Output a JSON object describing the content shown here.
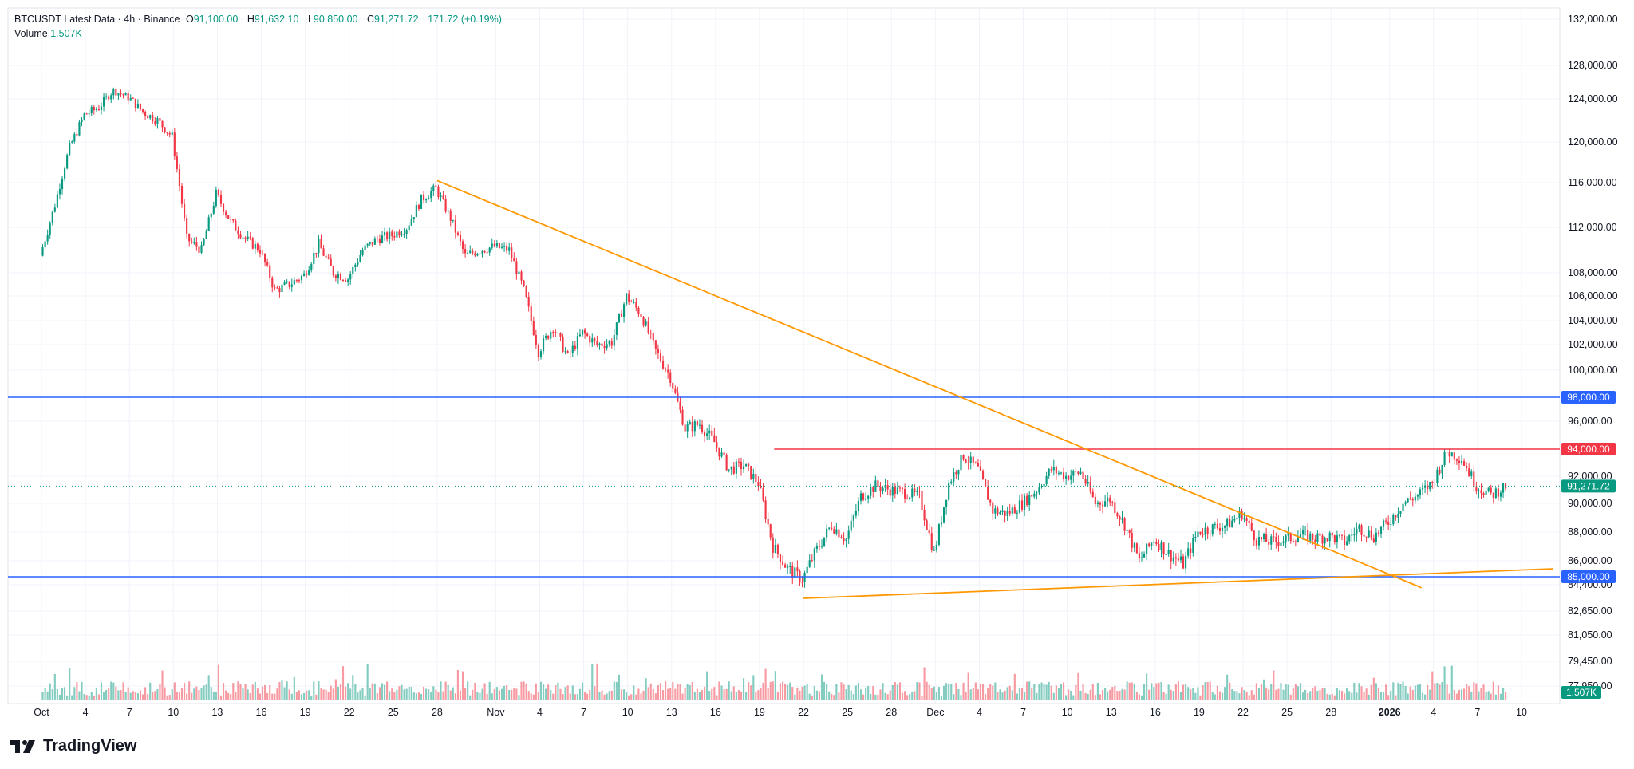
{
  "header": {
    "symbol": "BTCUSDT Latest Data · 4h · Binance",
    "o_label": "O",
    "o_value": "91,100.00",
    "h_label": "H",
    "h_value": "91,632.10",
    "l_label": "L",
    "l_value": "90,850.00",
    "c_label": "C",
    "c_value": "91,271.72",
    "change": "171.72 (+0.19%)",
    "volume_label": "Volume",
    "volume_value": "1.507K"
  },
  "brand": {
    "name": "TradingView"
  },
  "colors": {
    "up": "#089981",
    "down": "#f23645",
    "level_blue": "#2962ff",
    "level_red": "#f23645",
    "trend": "#ff9800",
    "grid": "#f0f3fa"
  },
  "chart_data": {
    "type": "candlestick",
    "timeframe": "4h",
    "ylim": [
      76800,
      133000
    ],
    "y_ticks": [
      "132,000.00",
      "128,000.00",
      "124,000.00",
      "120,000.00",
      "116,000.00",
      "112,000.00",
      "108,000.00",
      "106,000.00",
      "104,000.00",
      "102,000.00",
      "100,000.00",
      "96,000.00",
      "92,000.00",
      "90,000.00",
      "88,000.00",
      "86,000.00",
      "84,400.00",
      "82,650.00",
      "81,050.00",
      "79,450.00",
      "77,950.00"
    ],
    "x_ticks": [
      "Oct",
      "4",
      "7",
      "10",
      "13",
      "16",
      "19",
      "22",
      "25",
      "28",
      "Nov",
      "4",
      "7",
      "10",
      "13",
      "16",
      "19",
      "22",
      "25",
      "28",
      "Dec",
      "4",
      "7",
      "10",
      "13",
      "16",
      "19",
      "22",
      "25",
      "28",
      "2026",
      "4",
      "7",
      "10"
    ],
    "last_price": "91,271.72",
    "last_volume": "1.507K",
    "horizontal_levels": [
      {
        "label": "98,000.00",
        "value": 98000,
        "color": "#2962ff"
      },
      {
        "label": "94,000.00",
        "value": 94000,
        "color": "#f23645"
      },
      {
        "label": "85,000.00",
        "value": 85000,
        "color": "#2962ff"
      }
    ],
    "trendlines": [
      {
        "name": "descending",
        "from": [
          "Oct 28",
          116200
        ],
        "to": [
          "Jan 1",
          84200
        ]
      },
      {
        "name": "ascending",
        "from": [
          "Nov 22",
          83500
        ],
        "to": [
          "Jan 10",
          85500
        ]
      }
    ],
    "price_path": [
      [
        "Oct 1",
        109500
      ],
      [
        "Oct 2",
        114000
      ],
      [
        "Oct 3",
        119500
      ],
      [
        "Oct 4",
        122500
      ],
      [
        "Oct 5",
        123200
      ],
      [
        "Oct 6",
        125000
      ],
      [
        "Oct 7",
        124200
      ],
      [
        "Oct 8",
        122800
      ],
      [
        "Oct 9",
        122000
      ],
      [
        "Oct 10",
        120500
      ],
      [
        "Oct 11",
        111000
      ],
      [
        "Oct 12",
        110000
      ],
      [
        "Oct 13",
        115000
      ],
      [
        "Oct 14",
        112500
      ],
      [
        "Oct 15",
        111000
      ],
      [
        "Oct 16",
        110000
      ],
      [
        "Oct 17",
        106500
      ],
      [
        "Oct 18",
        107000
      ],
      [
        "Oct 19",
        107800
      ],
      [
        "Oct 20",
        110500
      ],
      [
        "Oct 21",
        108000
      ],
      [
        "Oct 22",
        107500
      ],
      [
        "Oct 23",
        110000
      ],
      [
        "Oct 24",
        111000
      ],
      [
        "Oct 25",
        111300
      ],
      [
        "Oct 26",
        112000
      ],
      [
        "Oct 27",
        114500
      ],
      [
        "Oct 28",
        115500
      ],
      [
        "Oct 29",
        112800
      ],
      [
        "Oct 30",
        109500
      ],
      [
        "Oct 31",
        110000
      ],
      [
        "Nov 1",
        110300
      ],
      [
        "Nov 2",
        110000
      ],
      [
        "Nov 3",
        106500
      ],
      [
        "Nov 4",
        101500
      ],
      [
        "Nov 5",
        103500
      ],
      [
        "Nov 6",
        101000
      ],
      [
        "Nov 7",
        103000
      ],
      [
        "Nov 8",
        102000
      ],
      [
        "Nov 9",
        102200
      ],
      [
        "Nov 10",
        106000
      ],
      [
        "Nov 11",
        104500
      ],
      [
        "Nov 12",
        101500
      ],
      [
        "Nov 13",
        99500
      ],
      [
        "Nov 14",
        95500
      ],
      [
        "Nov 15",
        95800
      ],
      [
        "Nov 16",
        94500
      ],
      [
        "Nov 17",
        92500
      ],
      [
        "Nov 18",
        92800
      ],
      [
        "Nov 19",
        91500
      ],
      [
        "Nov 20",
        87000
      ],
      [
        "Nov 21",
        85500
      ],
      [
        "Nov 22",
        84800
      ],
      [
        "Nov 23",
        86800
      ],
      [
        "Nov 24",
        88500
      ],
      [
        "Nov 25",
        87500
      ],
      [
        "Nov 26",
        90500
      ],
      [
        "Nov 27",
        91300
      ],
      [
        "Nov 28",
        91000
      ],
      [
        "Nov 29",
        90800
      ],
      [
        "Nov 30",
        90500
      ],
      [
        "Dec 1",
        86500
      ],
      [
        "Dec 2",
        91500
      ],
      [
        "Dec 3",
        93500
      ],
      [
        "Dec 4",
        92500
      ],
      [
        "Dec 5",
        89500
      ],
      [
        "Dec 6",
        89300
      ],
      [
        "Dec 7",
        90000
      ],
      [
        "Dec 8",
        91000
      ],
      [
        "Dec 9",
        92500
      ],
      [
        "Dec 10",
        92000
      ],
      [
        "Dec 11",
        92300
      ],
      [
        "Dec 12",
        90000
      ],
      [
        "Dec 13",
        90300
      ],
      [
        "Dec 14",
        88500
      ],
      [
        "Dec 15",
        86000
      ],
      [
        "Dec 16",
        87500
      ],
      [
        "Dec 17",
        86500
      ],
      [
        "Dec 18",
        85800
      ],
      [
        "Dec 19",
        88000
      ],
      [
        "Dec 20",
        88300
      ],
      [
        "Dec 21",
        88500
      ],
      [
        "Dec 22",
        89300
      ],
      [
        "Dec 23",
        87500
      ],
      [
        "Dec 24",
        87300
      ],
      [
        "Dec 25",
        87500
      ],
      [
        "Dec 26",
        87800
      ],
      [
        "Dec 27",
        87600
      ],
      [
        "Dec 28",
        87700
      ],
      [
        "Dec 29",
        87300
      ],
      [
        "Dec 30",
        88300
      ],
      [
        "Dec 31",
        87700
      ],
      [
        "Jan 1",
        88700
      ],
      [
        "Jan 2",
        90000
      ],
      [
        "Jan 3",
        90600
      ],
      [
        "Jan 4",
        91500
      ],
      [
        "Jan 5",
        93800
      ],
      [
        "Jan 6",
        93300
      ],
      [
        "Jan 7",
        91300
      ],
      [
        "Jan 8",
        90600
      ],
      [
        "Jan 9",
        91272
      ]
    ]
  }
}
